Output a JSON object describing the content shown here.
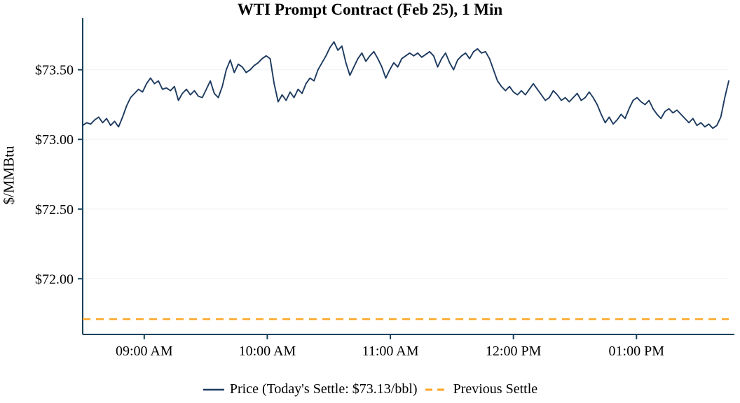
{
  "title": "WTI Prompt Contract (Feb 25), 1 Min",
  "y_axis_label": "$/MMBtu",
  "legend": {
    "price_label": "Price (Today's Settle: $73.13/bbl)",
    "previous_settle_label": "Previous Settle"
  },
  "colors": {
    "price_line": "#1d3a5f",
    "previous_settle_line": "#FFA726",
    "axis": "#16425b",
    "tick_text": "#000000"
  },
  "chart_data": {
    "type": "line",
    "title": "WTI Prompt Contract (Feb 25), 1 Min",
    "xlabel": "",
    "ylabel": "$/MMBtu",
    "ylim": [
      71.6,
      73.85
    ],
    "grid": false,
    "legend_position": "bottom",
    "x_start": "08:30 AM",
    "x_end": "01:45 PM",
    "total_minutes": 315,
    "x_ticks": [
      {
        "label": "09:00 AM",
        "minutes_from_start": 30
      },
      {
        "label": "10:00 AM",
        "minutes_from_start": 90
      },
      {
        "label": "11:00 AM",
        "minutes_from_start": 150
      },
      {
        "label": "12:00 PM",
        "minutes_from_start": 210
      },
      {
        "label": "01:00 PM",
        "minutes_from_start": 270
      }
    ],
    "y_ticks": [
      {
        "label": "$73.50",
        "value": 73.5
      },
      {
        "label": "$73.00",
        "value": 73.0
      },
      {
        "label": "$72.50",
        "value": 72.5
      },
      {
        "label": "$72.00",
        "value": 72.0
      }
    ],
    "series": [
      {
        "name": "Price (Today's Settle: $73.13/bbl)",
        "type": "line",
        "color": "#1d3a5f",
        "todays_settle": 73.13,
        "values": [
          73.1,
          73.12,
          73.11,
          73.14,
          73.16,
          73.12,
          73.15,
          73.1,
          73.13,
          73.09,
          73.16,
          73.24,
          73.3,
          73.33,
          73.36,
          73.34,
          73.4,
          73.44,
          73.4,
          73.42,
          73.36,
          73.37,
          73.35,
          73.38,
          73.28,
          73.33,
          73.36,
          73.32,
          73.35,
          73.31,
          73.3,
          73.36,
          73.42,
          73.33,
          73.3,
          73.38,
          73.5,
          73.57,
          73.48,
          73.54,
          73.52,
          73.48,
          73.5,
          73.53,
          73.55,
          73.58,
          73.6,
          73.58,
          73.4,
          73.27,
          73.32,
          73.28,
          73.34,
          73.3,
          73.36,
          73.33,
          73.4,
          73.44,
          73.42,
          73.5,
          73.55,
          73.6,
          73.66,
          73.7,
          73.64,
          73.67,
          73.55,
          73.46,
          73.52,
          73.58,
          73.62,
          73.56,
          73.6,
          73.63,
          73.58,
          73.52,
          73.44,
          73.5,
          73.55,
          73.52,
          73.58,
          73.6,
          73.62,
          73.6,
          73.62,
          73.59,
          73.61,
          73.63,
          73.6,
          73.52,
          73.58,
          73.62,
          73.55,
          73.5,
          73.57,
          73.6,
          73.62,
          73.58,
          73.63,
          73.65,
          73.62,
          73.63,
          73.58,
          73.5,
          73.42,
          73.38,
          73.35,
          73.38,
          73.34,
          73.32,
          73.35,
          73.32,
          73.36,
          73.4,
          73.36,
          73.32,
          73.28,
          73.3,
          73.35,
          73.32,
          73.28,
          73.3,
          73.27,
          73.3,
          73.33,
          73.28,
          73.3,
          73.34,
          73.3,
          73.25,
          73.18,
          73.12,
          73.16,
          73.11,
          73.14,
          73.18,
          73.15,
          73.22,
          73.28,
          73.3,
          73.27,
          73.25,
          73.28,
          73.22,
          73.18,
          73.15,
          73.2,
          73.22,
          73.19,
          73.21,
          73.18,
          73.15,
          73.12,
          73.15,
          73.1,
          73.12,
          73.09,
          73.11,
          73.08,
          73.1,
          73.16,
          73.3,
          73.42
        ]
      },
      {
        "name": "Previous Settle",
        "type": "hline",
        "style": "dashed",
        "color": "#FFA726",
        "value": 71.71
      }
    ]
  }
}
